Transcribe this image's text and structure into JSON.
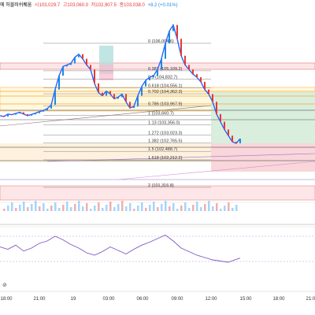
{
  "header": {
    "title_fragment": "에 허블러쉬퀘움",
    "open": "시103,029.7",
    "high": "고103,060.0",
    "low": "저102,907.5",
    "close": "종103,038.0",
    "change": "+8.2 (+0.01%)"
  },
  "colors": {
    "up": "#1e88e5",
    "down": "#e53935",
    "price_line": "#2962ff",
    "rsi_line": "#7e57c2",
    "fib_line": "#808080",
    "short_zone": "#f8d7da",
    "long_zone": "#d4edda"
  },
  "chart_data": {
    "type": "line",
    "x_ticks": [
      "18:00",
      "21:00",
      "19",
      "03:00",
      "06:00",
      "09:00",
      "12:00",
      "15:00",
      "18:00",
      "21:00"
    ],
    "fib_levels": [
      {
        "ratio": "0",
        "price": "106,004.6"
      },
      {
        "ratio": "0.382",
        "price": "105,109.2"
      },
      {
        "ratio": "0.5",
        "price": "104,832.7"
      },
      {
        "ratio": "0.618",
        "price": "104,556.1"
      },
      {
        "ratio": "0.702",
        "price": "104,362.3"
      },
      {
        "ratio": "0.786",
        "price": "103,967.9"
      },
      {
        "ratio": "1",
        "price": "103,660.7"
      },
      {
        "ratio": "1.13",
        "price": "103,356.0"
      },
      {
        "ratio": "1.272",
        "price": "103,023.3"
      },
      {
        "ratio": "1.382",
        "price": "102,765.5"
      },
      {
        "ratio": "1.5",
        "price": "102,488.7"
      },
      {
        "ratio": "1.618",
        "price": "102,212.2"
      },
      {
        "ratio": "2",
        "price": "101,316.8"
      }
    ],
    "price_series": {
      "name": "",
      "x": [
        0,
        5,
        10,
        15,
        20,
        25,
        30,
        35,
        40,
        45,
        50,
        55,
        60,
        65,
        70,
        75,
        80,
        85,
        90,
        95,
        100,
        105,
        110,
        115,
        120,
        125,
        130,
        135,
        140,
        145,
        150,
        155,
        160,
        165,
        170,
        175,
        180,
        185,
        190,
        195,
        200,
        205,
        210,
        215,
        220,
        225,
        230,
        235,
        240,
        245,
        250,
        255,
        260,
        265,
        270,
        275,
        280,
        285,
        290,
        295,
        300,
        305
      ],
      "values": [
        103650,
        103620,
        103700,
        103680,
        103720,
        103760,
        103700,
        103650,
        103690,
        103730,
        103780,
        103820,
        103880,
        104000,
        104500,
        104950,
        105250,
        105300,
        105350,
        105550,
        105650,
        105500,
        105300,
        105150,
        104700,
        104400,
        104300,
        104450,
        104350,
        104200,
        104250,
        104350,
        104100,
        103900,
        103950,
        104300,
        104600,
        104800,
        104900,
        104950,
        105150,
        105500,
        106000,
        106400,
        106600,
        106150,
        105600,
        105300,
        105150,
        105000,
        104900,
        104750,
        104500,
        104350,
        104100,
        103700,
        103450,
        103200,
        103000,
        102800,
        102750,
        102900
      ]
    },
    "rsi_series": {
      "x": [
        0,
        10,
        20,
        30,
        40,
        50,
        60,
        70,
        80,
        90,
        100,
        110,
        120,
        130,
        140,
        150,
        160,
        170,
        180,
        190,
        200,
        210,
        220,
        230,
        240,
        250,
        260,
        270,
        280,
        290,
        300,
        305
      ],
      "values": [
        52,
        48,
        55,
        45,
        50,
        58,
        62,
        70,
        64,
        56,
        50,
        42,
        38,
        44,
        52,
        46,
        40,
        48,
        55,
        60,
        66,
        72,
        62,
        50,
        44,
        38,
        34,
        30,
        28,
        26,
        31,
        33
      ]
    },
    "x_range": [
      0,
      400
    ],
    "price_range": [
      100700,
      106900
    ],
    "rsi_range": [
      10,
      90
    ],
    "grid": false
  }
}
